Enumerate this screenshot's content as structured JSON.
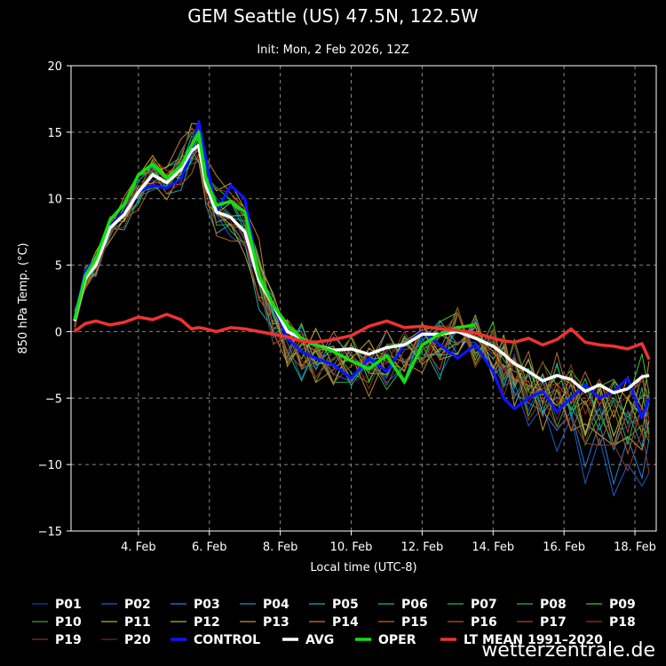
{
  "header": {
    "title": "GEM Seattle (US) 47.5N, 122.5W",
    "subtitle": "Init: Mon, 2 Feb 2026, 12Z"
  },
  "footer": {
    "brand": "wetterzentrale.de"
  },
  "chart_data": {
    "type": "line",
    "xlabel": "Local time (UTC-8)",
    "ylabel": "850 hPa Temp. (°C)",
    "xlim": [
      2.1,
      18.6
    ],
    "ylim": [
      -15,
      20
    ],
    "grid": true,
    "xticks": [
      4,
      6,
      8,
      10,
      12,
      14,
      16,
      18
    ],
    "xtick_labels": [
      "4. Feb",
      "6. Feb",
      "8. Feb",
      "10. Feb",
      "12. Feb",
      "14. Feb",
      "16. Feb",
      "18. Feb"
    ],
    "yticks": [
      -15,
      -10,
      -5,
      0,
      5,
      10,
      15,
      20
    ],
    "ytick_labels": [
      "−15",
      "−10",
      "−5",
      "0",
      "5",
      "10",
      "15",
      "20"
    ],
    "legend_position": "bottom",
    "members": [
      {
        "name": "P01",
        "color": "#1b3fb8",
        "base": -2,
        "heat": 0.2,
        "end": -6.5
      },
      {
        "name": "P02",
        "color": "#1e5fc8",
        "base": -2.5,
        "heat": -0.5,
        "end": -11
      },
      {
        "name": "P03",
        "color": "#2b7fd8",
        "base": -1.5,
        "heat": 0.5,
        "end": -9.5
      },
      {
        "name": "P04",
        "color": "#1f8fc0",
        "base": -1,
        "heat": 0,
        "end": -7
      },
      {
        "name": "P05",
        "color": "#1fa8c0",
        "base": -0.5,
        "heat": -0.8,
        "end": -8
      },
      {
        "name": "P06",
        "color": "#1db39a",
        "base": -2,
        "heat": 0.3,
        "end": -5
      },
      {
        "name": "P07",
        "color": "#23b36e",
        "base": -3,
        "heat": 0.8,
        "end": -4.5
      },
      {
        "name": "P08",
        "color": "#2bb34a",
        "base": -1.5,
        "heat": -0.3,
        "end": -6
      },
      {
        "name": "P09",
        "color": "#4bbf2b",
        "base": -0.8,
        "heat": 0.6,
        "end": -3
      },
      {
        "name": "P10",
        "color": "#39a832",
        "base": -2.2,
        "heat": -0.2,
        "end": -7.5
      },
      {
        "name": "P11",
        "color": "#9ab82b",
        "base": -1.2,
        "heat": 0.4,
        "end": -5.5
      },
      {
        "name": "P12",
        "color": "#c0b02b",
        "base": -0.6,
        "heat": 1.2,
        "end": -6
      },
      {
        "name": "P13",
        "color": "#c09a2b",
        "base": -1.8,
        "heat": -0.6,
        "end": -4
      },
      {
        "name": "P14",
        "color": "#c0802b",
        "base": -2.6,
        "heat": 1.5,
        "end": -8
      },
      {
        "name": "P15",
        "color": "#c06a2b",
        "base": -0.3,
        "heat": 0.1,
        "end": -3.5
      },
      {
        "name": "P16",
        "color": "#b85a22",
        "base": -1.4,
        "heat": -0.9,
        "end": -7
      },
      {
        "name": "P17",
        "color": "#a8481f",
        "base": -2.1,
        "heat": 0.7,
        "end": -5
      },
      {
        "name": "P18",
        "color": "#983a1f",
        "base": -0.9,
        "heat": -0.4,
        "end": -9
      },
      {
        "name": "P19",
        "color": "#883028",
        "base": -1.7,
        "heat": 0.9,
        "end": -4
      },
      {
        "name": "P20",
        "color": "#782428",
        "base": -2.4,
        "heat": -0.1,
        "end": -6.5
      }
    ],
    "members_note_visible": false,
    "series": [
      {
        "name": "CONTROL",
        "color": "#0b16ff",
        "width": 3.2,
        "x": [
          2.2,
          2.5,
          2.8,
          3.2,
          3.6,
          4.0,
          4.4,
          4.8,
          5.2,
          5.5,
          5.7,
          5.9,
          6.2,
          6.6,
          7.0,
          7.4,
          7.8,
          8.2,
          8.6,
          9.0,
          9.5,
          10.0,
          10.5,
          11.0,
          11.5,
          12.0,
          12.5,
          13.0,
          13.5,
          14.0,
          14.3,
          14.6,
          15.0,
          15.4,
          15.8,
          16.2,
          16.6,
          17.0,
          17.4,
          17.8,
          18.2,
          18.4
        ],
        "y": [
          1,
          4.5,
          5.5,
          8,
          9,
          10.5,
          11,
          10.8,
          11.5,
          13.5,
          15.8,
          13,
          9,
          11,
          10,
          4,
          2,
          -0.5,
          -1.5,
          -2,
          -2.5,
          -3.5,
          -2,
          -3,
          -1,
          0,
          -1,
          -2,
          -1,
          -3,
          -5,
          -5.8,
          -5,
          -4.5,
          -6,
          -5,
          -4,
          -5,
          -4.5,
          -3.5,
          -6.5,
          -5
        ]
      },
      {
        "name": "AVG",
        "color": "#ffffff",
        "width": 3.5,
        "x": [
          2.2,
          2.5,
          2.8,
          3.2,
          3.6,
          4.0,
          4.4,
          4.8,
          5.2,
          5.5,
          5.7,
          5.9,
          6.2,
          6.6,
          7.0,
          7.4,
          7.8,
          8.2,
          8.6,
          9.0,
          9.5,
          10.0,
          10.5,
          11.0,
          11.5,
          12.0,
          12.5,
          13.0,
          13.5,
          14.0,
          14.3,
          14.6,
          15.0,
          15.4,
          15.8,
          16.2,
          16.6,
          17.0,
          17.4,
          17.8,
          18.2,
          18.4
        ],
        "y": [
          0.8,
          4,
          5,
          7.8,
          8.8,
          10.5,
          11.8,
          11.2,
          12.2,
          13.6,
          14,
          11,
          9,
          8.6,
          7.5,
          3.8,
          2,
          0,
          -0.5,
          -1,
          -1.4,
          -1.3,
          -1.7,
          -1.2,
          -1,
          -0.2,
          -0.2,
          0,
          -0.5,
          -1.1,
          -1.7,
          -2.4,
          -3,
          -3.7,
          -3.3,
          -3.6,
          -4.5,
          -4.0,
          -4.6,
          -4.3,
          -3.4,
          -3.3
        ]
      },
      {
        "name": "OPER",
        "color": "#11e011",
        "width": 3.5,
        "x": [
          2.2,
          2.5,
          2.8,
          3.2,
          3.6,
          4.0,
          4.4,
          4.8,
          5.2,
          5.5,
          5.7,
          5.9,
          6.2,
          6.6,
          7.0,
          7.4,
          7.8,
          8.2,
          8.6,
          9.0,
          9.5,
          10.0,
          10.5,
          11.0,
          11.5,
          12.0,
          12.5,
          13.0,
          13.5
        ],
        "y": [
          0.9,
          4.2,
          5.5,
          8.4,
          9.6,
          11.8,
          12.6,
          11.5,
          12.5,
          14,
          15,
          11.5,
          9.5,
          9.8,
          9,
          4.2,
          2,
          0.5,
          -0.5,
          -1,
          -1.5,
          -2.2,
          -2.8,
          -1.8,
          -3.8,
          -1,
          -0.2,
          0.3,
          0.5
        ]
      },
      {
        "name": "LT MEAN 1991–2020",
        "color": "#f03232",
        "width": 3.5,
        "x": [
          2.2,
          2.5,
          2.8,
          3.2,
          3.6,
          4.0,
          4.4,
          4.8,
          5.2,
          5.5,
          5.7,
          5.9,
          6.2,
          6.6,
          7.0,
          7.4,
          7.8,
          8.2,
          8.6,
          9.0,
          9.5,
          10.0,
          10.5,
          11.0,
          11.5,
          12.0,
          12.5,
          13.0,
          13.5,
          14.0,
          14.3,
          14.6,
          15.0,
          15.4,
          15.8,
          16.2,
          16.6,
          17.0,
          17.4,
          17.8,
          18.2,
          18.4
        ],
        "y": [
          0,
          0.6,
          0.8,
          0.5,
          0.7,
          1.1,
          0.9,
          1.3,
          0.9,
          0.2,
          0.3,
          0.2,
          0.0,
          0.3,
          0.2,
          0.0,
          -0.2,
          -0.4,
          -0.7,
          -0.8,
          -0.6,
          -0.3,
          0.4,
          0.8,
          0.3,
          0.4,
          0.2,
          0.1,
          -0.1,
          -0.5,
          -0.7,
          -0.8,
          -0.5,
          -1,
          -0.6,
          0.2,
          -0.8,
          -1,
          -1.1,
          -1.3,
          -0.9,
          -2.1
        ]
      }
    ]
  },
  "legend": [
    [
      "P01",
      "P02",
      "P03",
      "P04",
      "P05",
      "P06",
      "P07",
      "P08",
      "P09"
    ],
    [
      "P10",
      "P11",
      "P12",
      "P13",
      "P14",
      "P15",
      "P16",
      "P17",
      "P18"
    ],
    [
      "P19",
      "P20",
      "CONTROL",
      "AVG",
      "OPER",
      "LT MEAN 1991–2020"
    ]
  ]
}
